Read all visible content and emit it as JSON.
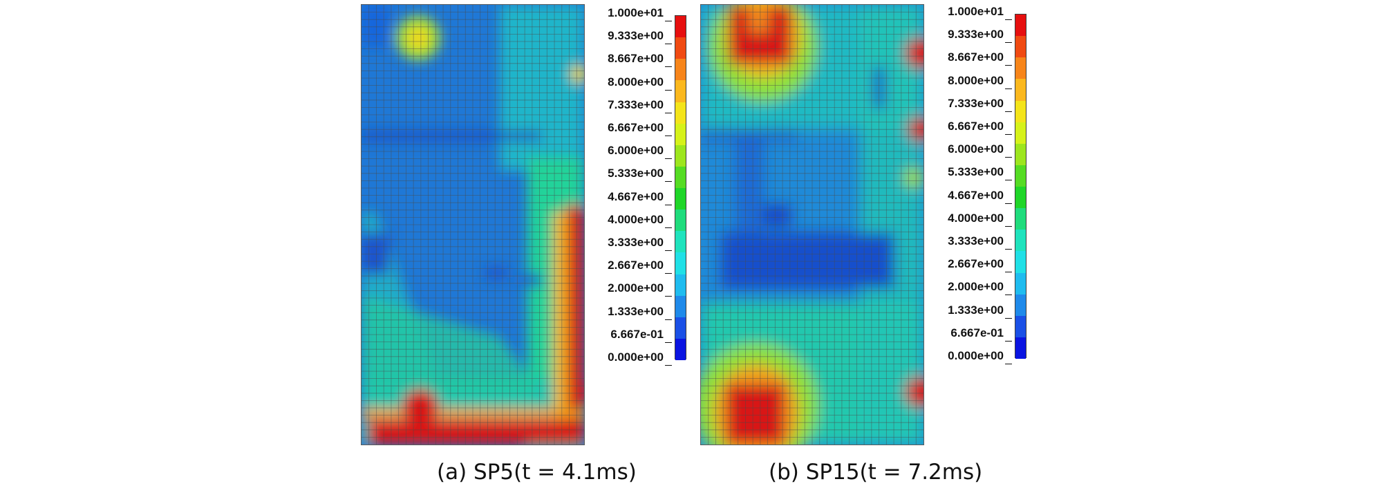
{
  "panels": [
    {
      "caption": "(a) SP5(t = 4.1ms)",
      "legend_labels": [
        "1.000e+01",
        "9.333e+00",
        "8.667e+00",
        "8.000e+00",
        "7.333e+00",
        "6.667e+00",
        "6.000e+00",
        "5.333e+00",
        "4.667e+00",
        "4.000e+00",
        "3.333e+00",
        "2.667e+00",
        "2.000e+00",
        "1.333e+00",
        "6.667e-01",
        "0.000e+00"
      ]
    },
    {
      "caption": "(b) SP15(t = 7.2ms)",
      "legend_labels": [
        "1.000e+01",
        "9.333e+00",
        "8.667e+00",
        "8.000e+00",
        "7.333e+00",
        "6.667e+00",
        "6.000e+00",
        "5.333e+00",
        "4.667e+00",
        "4.000e+00",
        "3.333e+00",
        "2.667e+00",
        "2.000e+00",
        "1.333e+00",
        "6.667e-01",
        "0.000e+00"
      ]
    }
  ],
  "colorscale": [
    "#e60f0f",
    "#f04a12",
    "#f7851a",
    "#fbb81e",
    "#f4e41a",
    "#d6f21a",
    "#9de61e",
    "#55dc23",
    "#1fd628",
    "#1fdc7c",
    "#1fe3bd",
    "#20e0e6",
    "#1fbcef",
    "#1f8aea",
    "#1a50e6",
    "#0a14e1"
  ]
}
